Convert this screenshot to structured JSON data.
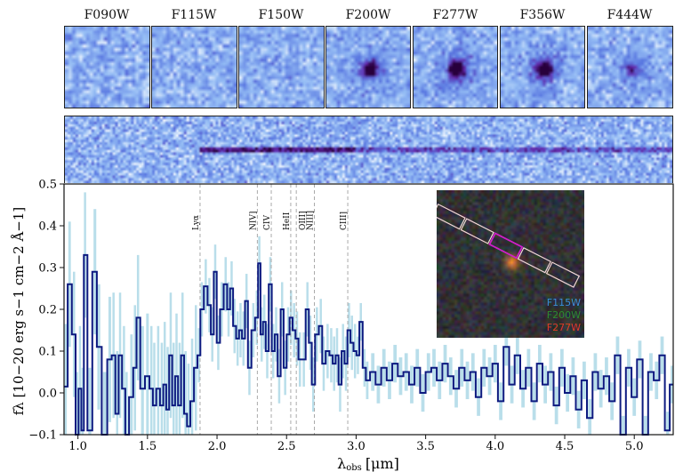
{
  "filters": [
    "F090W",
    "F115W",
    "F150W",
    "F200W",
    "F277W",
    "F356W",
    "F444W"
  ],
  "inset": {
    "legend": [
      {
        "label": "F115W",
        "color": "#3a8fd8"
      },
      {
        "label": "F200W",
        "color": "#2e8b2e"
      },
      {
        "label": "F277W",
        "color": "#e03a2a"
      }
    ]
  },
  "chart_data": {
    "type": "line",
    "xlabel": "λobs [μm]",
    "xlabel_main": "λ",
    "xlabel_sub": "obs",
    "xlabel_unit": "[μm]",
    "ylabel": "fλ [10−20 erg s−1 cm−2 Å−1]",
    "xlim": [
      0.9,
      5.28
    ],
    "ylim": [
      -0.1,
      0.5
    ],
    "xticks": [
      "1.0",
      "1.5",
      "2.0",
      "2.5",
      "3.0",
      "3.5",
      "4.0",
      "4.5",
      "5.0"
    ],
    "yticks": [
      "−0.1",
      "0.0",
      "0.1",
      "0.2",
      "0.3",
      "0.4",
      "0.5"
    ],
    "grid": false,
    "line_color": "#0d1a80",
    "error_color": "#add8e6",
    "emission_lines": [
      {
        "label": "Lyα",
        "wavelength": 1.878
      },
      {
        "label": "NIV]",
        "wavelength": 2.29
      },
      {
        "label": "CIV",
        "wavelength": 2.39
      },
      {
        "label": "HeII",
        "wavelength": 2.53
      },
      {
        "label": "OIII]",
        "wavelength": 2.57
      },
      {
        "label": "NIII]",
        "wavelength": 2.7
      },
      {
        "label": "CIII]",
        "wavelength": 2.94
      }
    ],
    "error_by_range": [
      {
        "from": 0.9,
        "to": 1.85,
        "sigma": 0.15
      },
      {
        "from": 1.85,
        "to": 3.0,
        "sigma": 0.065
      },
      {
        "from": 3.0,
        "to": 5.28,
        "sigma": 0.045
      }
    ],
    "wavelength": [
      0.912,
      0.94,
      0.972,
      0.994,
      1.015,
      1.034,
      1.051,
      1.085,
      1.122,
      1.15,
      1.192,
      1.229,
      1.256,
      1.282,
      1.303,
      1.331,
      1.35,
      1.385,
      1.41,
      1.432,
      1.464,
      1.5,
      1.528,
      1.549,
      1.577,
      1.603,
      1.624,
      1.645,
      1.667,
      1.688,
      1.709,
      1.731,
      1.752,
      1.774,
      1.795,
      1.821,
      1.848,
      1.87,
      1.891,
      1.919,
      1.945,
      1.966,
      1.987,
      2.009,
      2.034,
      2.062,
      2.083,
      2.105,
      2.126,
      2.148,
      2.169,
      2.19,
      2.212,
      2.233,
      2.261,
      2.286,
      2.304,
      2.321,
      2.34,
      2.361,
      2.383,
      2.404,
      2.425,
      2.447,
      2.468,
      2.49,
      2.511,
      2.532,
      2.554,
      2.575,
      2.596,
      2.624,
      2.65,
      2.671,
      2.692,
      2.718,
      2.746,
      2.767,
      2.795,
      2.821,
      2.842,
      2.863,
      2.885,
      2.906,
      2.927,
      2.949,
      2.97,
      2.992,
      3.013,
      3.034,
      3.06,
      3.08,
      3.12,
      3.16,
      3.2,
      3.24,
      3.28,
      3.32,
      3.36,
      3.4,
      3.44,
      3.48,
      3.52,
      3.56,
      3.6,
      3.64,
      3.68,
      3.72,
      3.76,
      3.8,
      3.84,
      3.88,
      3.92,
      3.96,
      4.0,
      4.04,
      4.08,
      4.12,
      4.16,
      4.2,
      4.24,
      4.28,
      4.32,
      4.36,
      4.4,
      4.44,
      4.48,
      4.52,
      4.56,
      4.6,
      4.64,
      4.68,
      4.72,
      4.76,
      4.8,
      4.84,
      4.88,
      4.92,
      4.96,
      5.0,
      5.04,
      5.08,
      5.12,
      5.16,
      5.2,
      5.24,
      5.27
    ],
    "flux": [
      0.015,
      0.26,
      0.14,
      -0.1,
      0.01,
      -0.09,
      0.33,
      -0.09,
      0.29,
      0.11,
      -0.1,
      0.08,
      0.09,
      -0.05,
      0.09,
      0.01,
      -0.1,
      -0.01,
      0.06,
      0.18,
      0.01,
      0.04,
      0.01,
      -0.03,
      0.01,
      -0.03,
      0.02,
      -0.04,
      0.09,
      -0.03,
      0.04,
      -0.03,
      0.09,
      -0.05,
      -0.08,
      -0.02,
      0.06,
      0.09,
      0.2,
      0.255,
      0.21,
      0.14,
      0.29,
      0.12,
      0.2,
      0.26,
      0.2,
      0.25,
      0.16,
      0.13,
      0.15,
      0.13,
      0.22,
      0.06,
      0.15,
      0.18,
      0.31,
      0.14,
      0.17,
      0.1,
      0.26,
      0.1,
      0.14,
      0.04,
      0.2,
      0.06,
      0.14,
      0.18,
      0.15,
      0.13,
      0.08,
      0.08,
      0.2,
      0.12,
      0.02,
      0.14,
      0.16,
      0.07,
      0.1,
      0.09,
      0.07,
      0.09,
      0.02,
      0.1,
      0.07,
      0.15,
      0.12,
      0.1,
      0.09,
      0.17,
      0.06,
      0.03,
      0.05,
      0.02,
      0.06,
      0.03,
      0.07,
      0.04,
      0.05,
      0.02,
      0.06,
      0.0,
      0.05,
      0.06,
      0.03,
      0.07,
      0.04,
      0.01,
      0.06,
      0.03,
      0.05,
      -0.01,
      0.06,
      0.04,
      0.07,
      -0.02,
      0.11,
      0.02,
      0.09,
      0.01,
      0.06,
      -0.02,
      0.07,
      0.02,
      0.05,
      -0.03,
      0.06,
      0.0,
      0.04,
      -0.04,
      0.03,
      -0.06,
      0.05,
      0.01,
      0.04,
      -0.02,
      0.09,
      -0.1,
      0.06,
      -0.01,
      0.08,
      -0.1,
      0.05,
      0.03,
      0.09,
      -0.09,
      0.02
    ]
  }
}
